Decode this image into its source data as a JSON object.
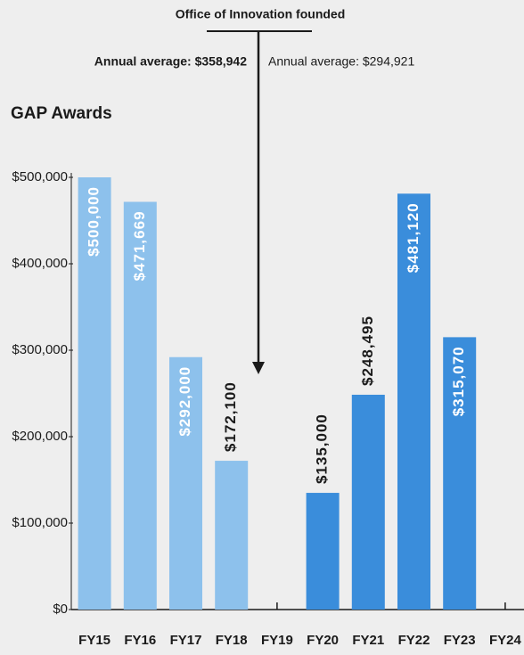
{
  "chart_data": {
    "type": "bar",
    "title": "GAP Awards",
    "annotations": {
      "event": "Office of Innovation founded",
      "average_before": "Annual average: $358,942",
      "average_after": "Annual average: $294,921"
    },
    "categories": [
      "FY15",
      "FY16",
      "FY17",
      "FY18",
      "FY19",
      "FY20",
      "FY21",
      "FY22",
      "FY23",
      "FY24"
    ],
    "values": [
      500000,
      471669,
      292000,
      172100,
      null,
      135000,
      248495,
      481120,
      315070,
      null
    ],
    "value_labels": [
      "$500,000",
      "$471,669",
      "$292,000",
      "$172,100",
      null,
      "$135,000",
      "$248,495",
      "$481,120",
      "$315,070",
      null
    ],
    "label_positions": [
      "inside",
      "inside",
      "inside",
      "above",
      null,
      "above",
      "above",
      "inside",
      "inside",
      null
    ],
    "colors": [
      "#8dc1ec",
      "#8dc1ec",
      "#8dc1ec",
      "#8dc1ec",
      null,
      "#3a8ddb",
      "#3a8ddb",
      "#3a8ddb",
      "#3a8ddb",
      null
    ],
    "ylim": [
      0,
      500000
    ],
    "yticks": [
      {
        "value": 0,
        "label": "$0"
      },
      {
        "value": 100000,
        "label": "$100,000"
      },
      {
        "value": 200000,
        "label": "$200,000"
      },
      {
        "value": 300000,
        "label": "$300,000"
      },
      {
        "value": 400000,
        "label": "$400,000"
      },
      {
        "value": 500000,
        "label": "$500,000"
      }
    ]
  }
}
